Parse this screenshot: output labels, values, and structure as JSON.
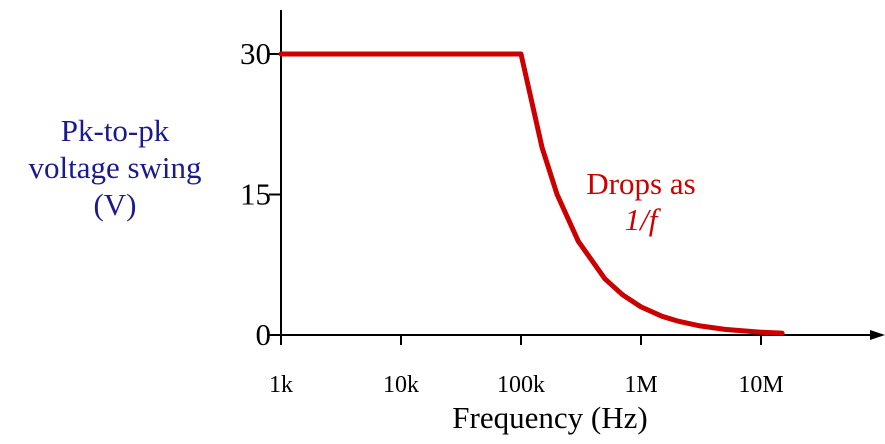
{
  "chart_data": {
    "type": "line",
    "title": "",
    "xlabel": "Frequency (Hz)",
    "ylabel": [
      "Pk-to-pk",
      "voltage swing",
      "(V)"
    ],
    "x_scale": "log",
    "x_tick_labels": [
      "1k",
      "10k",
      "100k",
      "1M",
      "10M"
    ],
    "x_tick_values": [
      1000,
      10000,
      100000,
      1000000,
      10000000
    ],
    "xlim": [
      1000,
      100000000
    ],
    "y_tick_labels": [
      "30",
      "15",
      "0"
    ],
    "y_tick_values": [
      30,
      15,
      0
    ],
    "ylim": [
      0,
      35
    ],
    "grid": false,
    "series": [
      {
        "color": "#cc0000",
        "x": [
          1000,
          100000,
          150000,
          200000,
          300000,
          500000,
          700000,
          1000000,
          1500000,
          2000000,
          3000000,
          5000000,
          10000000,
          15000000
        ],
        "y": [
          30,
          30,
          20,
          15,
          10,
          6,
          4.3,
          3,
          2,
          1.5,
          1,
          0.6,
          0.3,
          0.2
        ]
      }
    ],
    "annotations": [
      {
        "lines": [
          "Drops as",
          "1/f"
        ],
        "color": "#cc0000"
      }
    ]
  }
}
